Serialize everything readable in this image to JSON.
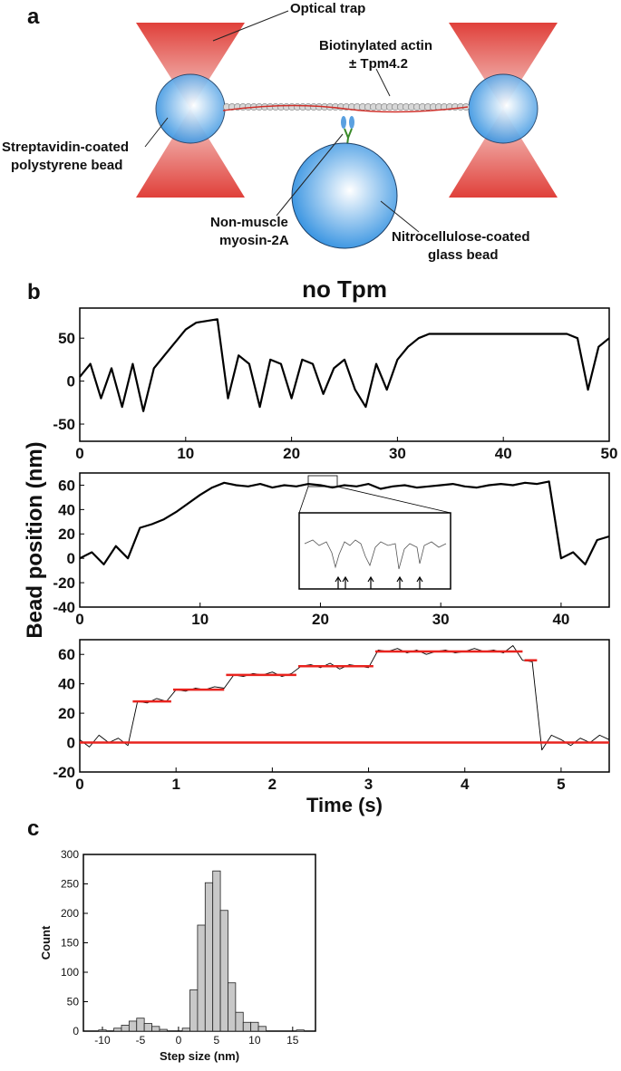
{
  "panel_labels": [
    "a",
    "b",
    "c"
  ],
  "diagram": {
    "optical_trap": "Optical trap",
    "actin_line1": "Biotinylated actin",
    "actin_line2": "± Tpm4.2",
    "bead_line1": "Streptavidin-coated",
    "bead_line2": "polystyrene bead",
    "myosin_line1": "Non-muscle",
    "myosin_line2": "myosin-2A",
    "glass_line1": "Nitrocellulose-coated",
    "glass_line2": "glass bead"
  },
  "chart_data": [
    {
      "type": "line",
      "title": "no Tpm",
      "ylabel": "Bead position (nm)",
      "x": [
        0,
        1,
        2,
        3,
        4,
        5,
        6,
        7,
        8,
        9,
        10,
        11,
        12,
        13,
        14,
        15,
        16,
        17,
        18,
        19,
        20,
        21,
        22,
        23,
        24,
        25,
        26,
        27,
        28,
        29,
        30,
        31,
        32,
        33,
        34,
        35,
        36,
        37,
        38,
        39,
        40,
        41,
        42,
        43,
        44,
        45,
        46,
        47,
        48,
        49,
        50
      ],
      "series": [
        {
          "color": "#000000",
          "values": [
            5,
            20,
            -20,
            15,
            -30,
            20,
            -35,
            15,
            30,
            45,
            60,
            68,
            70,
            72,
            -20,
            30,
            20,
            -30,
            25,
            20,
            -20,
            25,
            20,
            -15,
            15,
            25,
            -10,
            -30,
            20,
            -10,
            25,
            40,
            50,
            55,
            55,
            55,
            55,
            55,
            55,
            55,
            55,
            55,
            55,
            55,
            55,
            55,
            55,
            50,
            -10,
            40,
            50
          ]
        }
      ],
      "xlim": [
        0,
        50
      ],
      "ylim": [
        -70,
        85
      ],
      "xticks": [
        0,
        10,
        20,
        30,
        40,
        50
      ],
      "yticks": [
        -50,
        0,
        50
      ]
    },
    {
      "type": "line",
      "x": [
        0,
        1,
        2,
        3,
        4,
        5,
        6,
        7,
        8,
        9,
        10,
        11,
        12,
        13,
        14,
        15,
        16,
        17,
        18,
        19,
        20,
        21,
        22,
        23,
        24,
        25,
        26,
        27,
        28,
        29,
        30,
        31,
        32,
        33,
        34,
        35,
        36,
        37,
        38,
        39,
        40,
        41,
        42,
        43,
        44
      ],
      "series": [
        {
          "color": "#000000",
          "values": [
            0,
            5,
            -5,
            10,
            0,
            25,
            28,
            32,
            38,
            45,
            52,
            58,
            62,
            60,
            59,
            61,
            58,
            60,
            59,
            61,
            60,
            58,
            60,
            59,
            61,
            57,
            59,
            60,
            58,
            59,
            60,
            61,
            59,
            58,
            60,
            61,
            60,
            62,
            61,
            63,
            0,
            5,
            -5,
            15,
            18
          ]
        }
      ],
      "xlim": [
        0,
        44
      ],
      "ylim": [
        -40,
        70
      ],
      "xticks": [
        0,
        10,
        20,
        30,
        40
      ],
      "yticks": [
        -40,
        -20,
        0,
        20,
        40,
        60
      ]
    },
    {
      "type": "line",
      "xlabel": "Time (s)",
      "x": [
        0,
        0.1,
        0.2,
        0.3,
        0.4,
        0.5,
        0.6,
        0.7,
        0.8,
        0.9,
        1,
        1.1,
        1.2,
        1.3,
        1.4,
        1.5,
        1.6,
        1.7,
        1.8,
        1.9,
        2,
        2.1,
        2.2,
        2.3,
        2.4,
        2.5,
        2.6,
        2.7,
        2.8,
        2.9,
        3,
        3.1,
        3.2,
        3.3,
        3.4,
        3.5,
        3.6,
        3.7,
        3.8,
        3.9,
        4,
        4.1,
        4.2,
        4.3,
        4.4,
        4.5,
        4.6,
        4.7,
        4.8,
        4.9,
        5,
        5.1,
        5.2,
        5.3,
        5.4,
        5.5
      ],
      "series": [
        {
          "color": "#000000",
          "values": [
            2,
            -3,
            5,
            0,
            3,
            -2,
            28,
            27,
            30,
            28,
            36,
            35,
            37,
            36,
            38,
            37,
            46,
            45,
            47,
            46,
            48,
            45,
            47,
            52,
            53,
            51,
            54,
            50,
            53,
            52,
            51,
            63,
            62,
            64,
            61,
            63,
            60,
            62,
            63,
            61,
            62,
            64,
            62,
            63,
            61,
            66,
            56,
            55,
            -5,
            5,
            2,
            -2,
            3,
            0,
            5,
            2
          ]
        }
      ],
      "steps_color": "#e8231e",
      "steps": [
        {
          "start": 0,
          "end": 5.5,
          "value": 0
        },
        {
          "start": 0.55,
          "end": 0.95,
          "value": 28
        },
        {
          "start": 0.97,
          "end": 1.5,
          "value": 36
        },
        {
          "start": 1.52,
          "end": 2.25,
          "value": 46
        },
        {
          "start": 2.27,
          "end": 3.05,
          "value": 52
        },
        {
          "start": 3.07,
          "end": 4.6,
          "value": 62
        },
        {
          "start": 4.62,
          "end": 4.75,
          "value": 56
        }
      ],
      "xlim": [
        0,
        5.5
      ],
      "ylim": [
        -20,
        70
      ],
      "xticks": [
        0,
        1,
        2,
        3,
        4,
        5
      ],
      "yticks": [
        -20,
        0,
        20,
        40,
        60
      ]
    },
    {
      "type": "histogram",
      "xlabel": "Step size (nm)",
      "ylabel": "Count",
      "color": "#c8c8c8",
      "bins": [
        -10.5,
        -9.5,
        -8.5,
        -7.5,
        -6.5,
        -5.5,
        -4.5,
        -3.5,
        -2.5,
        -1.5,
        -0.5,
        0.5,
        1.5,
        2.5,
        3.5,
        4.5,
        5.5,
        6.5,
        7.5,
        8.5,
        9.5,
        10.5,
        11.5,
        12.5,
        13.5,
        14.5,
        15.5,
        16.5
      ],
      "values": [
        2,
        0,
        5,
        10,
        17,
        22,
        13,
        8,
        3,
        0,
        0,
        5,
        70,
        180,
        252,
        272,
        205,
        82,
        32,
        15,
        15,
        8,
        0,
        0,
        0,
        0,
        2
      ],
      "xlim": [
        -12.5,
        18
      ],
      "ylim": [
        0,
        300
      ],
      "xticks": [
        -10,
        -5,
        0,
        5,
        10,
        15
      ],
      "yticks": [
        0,
        50,
        100,
        150,
        200,
        250,
        300
      ]
    }
  ]
}
